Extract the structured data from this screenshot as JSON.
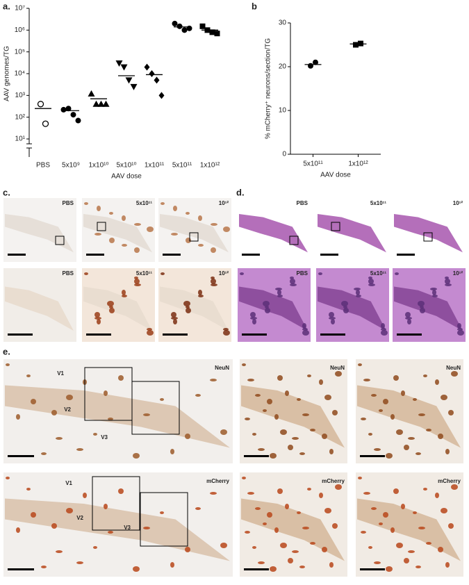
{
  "panels": {
    "a": "a.",
    "b": "b",
    "c": "c.",
    "d": "d.",
    "e": "e."
  },
  "chart_data": [
    {
      "type": "scatter",
      "y_label": "AAV genomes/TG",
      "x_label": "AAV dose",
      "log_scale": true,
      "categories": [
        "PBS",
        "5x10⁹",
        "1x10¹⁰",
        "5x10¹⁰",
        "1x10¹¹",
        "5x10¹¹",
        "1x10¹²"
      ],
      "markers": [
        "open-circle",
        "circle",
        "triangle-up",
        "triangle-down",
        "diamond",
        "circle",
        "square"
      ],
      "color": "#000000",
      "groups": [
        {
          "points": [
            400,
            50
          ],
          "mean": 250
        },
        {
          "points": [
            220,
            250,
            130,
            70
          ],
          "mean": 200
        },
        {
          "points": [
            1200,
            400,
            400,
            400
          ],
          "mean": 700
        },
        {
          "points": [
            30000,
            20000,
            5000,
            2500
          ],
          "mean": 8000
        },
        {
          "points": [
            20000,
            10000,
            5000,
            1000
          ],
          "mean": 9000
        },
        {
          "points": [
            2000000,
            1500000,
            1000000,
            1200000
          ],
          "mean": 1400000
        },
        {
          "points": [
            1500000,
            1000000,
            800000,
            700000
          ],
          "mean": 1000000
        }
      ],
      "ylim": [
        10,
        10000000
      ],
      "yticks": [
        {
          "value": 10,
          "label": "10¹"
        },
        {
          "value": 100,
          "label": "10²"
        },
        {
          "value": 1000,
          "label": "10³"
        },
        {
          "value": 10000,
          "label": "10⁴"
        },
        {
          "value": 100000,
          "label": "10⁵"
        },
        {
          "value": 1000000,
          "label": "10⁶"
        },
        {
          "value": 10000000,
          "label": "10⁷"
        }
      ]
    },
    {
      "type": "scatter",
      "y_label": "% mCherry⁺ neurons/section/TG",
      "x_label": "AAV dose",
      "log_scale": false,
      "categories": [
        "5x10¹¹",
        "1x10¹²"
      ],
      "markers": [
        "circle",
        "square"
      ],
      "color": "#000000",
      "groups": [
        {
          "points": [
            20.2,
            21
          ],
          "mean": 20.5
        },
        {
          "points": [
            25,
            25.3
          ],
          "mean": 25.2
        }
      ],
      "ylim": [
        0,
        30
      ],
      "yticks": [
        0,
        10,
        20,
        30
      ]
    }
  ],
  "panel_c": {
    "labels": [
      "PBS",
      "5x10¹¹",
      "10¹²"
    ]
  },
  "panel_d": {
    "labels": [
      "PBS",
      "5x10¹¹",
      "10¹²"
    ]
  },
  "panel_e": {
    "stains": [
      "NeuN",
      "mCherry"
    ],
    "regions": [
      "V1",
      "V2",
      "V3"
    ]
  }
}
